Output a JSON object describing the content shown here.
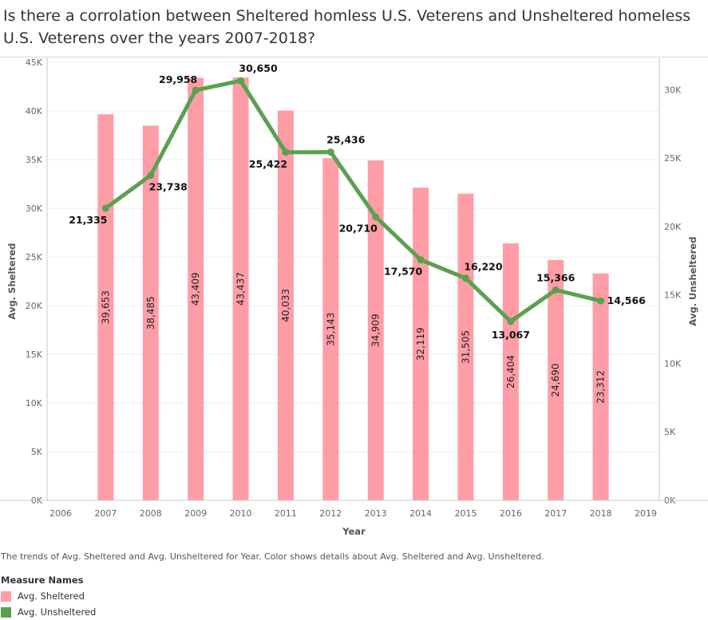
{
  "title": "Is there a corrolation between Sheltered homless U.S. Veterens and Unsheltered homeless U.S. Veterens over the years 2007-2018?",
  "caption": "The trends of Avg. Sheltered and Avg. Unsheltered for Year.  Color shows details about Avg. Sheltered and Avg. Unsheltered.",
  "legend": {
    "title": "Measure Names",
    "items": [
      {
        "label": "Avg. Sheltered",
        "color": "#ff9da7"
      },
      {
        "label": "Avg. Unsheltered",
        "color": "#59a14f"
      }
    ]
  },
  "chart_data": {
    "type": "bar+line",
    "x": [
      2007,
      2008,
      2009,
      2010,
      2011,
      2012,
      2013,
      2014,
      2015,
      2016,
      2017,
      2018
    ],
    "x_ticks": [
      2006,
      2007,
      2008,
      2009,
      2010,
      2011,
      2012,
      2013,
      2014,
      2015,
      2016,
      2017,
      2018,
      2019
    ],
    "xlabel": "Year",
    "ylabel": "Avg. Sheltered",
    "y2label": "Avg. Unsheltered",
    "ylim": [
      0,
      45000
    ],
    "y2lim": [
      0,
      32000
    ],
    "y_ticks": [
      0,
      5000,
      10000,
      15000,
      20000,
      25000,
      30000,
      35000,
      40000,
      45000
    ],
    "y_tick_labels": [
      "0K",
      "5K",
      "10K",
      "15K",
      "20K",
      "25K",
      "30K",
      "35K",
      "40K",
      "45K"
    ],
    "y2_ticks": [
      0,
      5000,
      10000,
      15000,
      20000,
      25000,
      30000
    ],
    "y2_tick_labels": [
      "0K",
      "5K",
      "10K",
      "15K",
      "20K",
      "25K",
      "30K"
    ],
    "series": [
      {
        "name": "Avg. Sheltered",
        "type": "bar",
        "axis": "left",
        "color": "#ff9da7",
        "values": [
          39653,
          38485,
          43409,
          43437,
          40033,
          35143,
          34909,
          32119,
          31505,
          26404,
          24690,
          23312
        ],
        "labels": [
          "39,653",
          "38,485",
          "43,409",
          "43,437",
          "40,033",
          "35,143",
          "34,909",
          "32,119",
          "31,505",
          "26,404",
          "24,690",
          "23,312"
        ]
      },
      {
        "name": "Avg. Unsheltered",
        "type": "line",
        "axis": "right",
        "color": "#59a14f",
        "values": [
          21335,
          23738,
          29958,
          30650,
          25422,
          25436,
          20710,
          17570,
          16220,
          13067,
          15366,
          14566
        ],
        "labels": [
          "21,335",
          "23,738",
          "29,958",
          "30,650",
          "25,422",
          "25,436",
          "20,710",
          "17,570",
          "16,220",
          "13,067",
          "15,366",
          "14,566"
        ]
      }
    ],
    "grid": true,
    "legend_position": "bottom-left"
  }
}
